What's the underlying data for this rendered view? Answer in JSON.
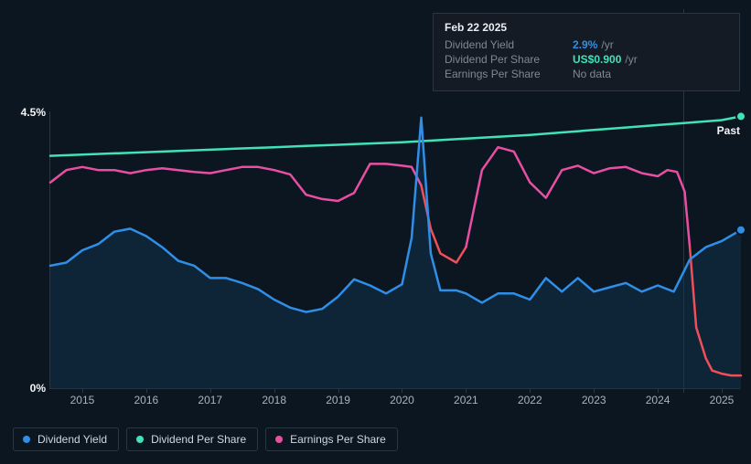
{
  "background_color": "#0b1620",
  "axis_color": "#2a3642",
  "text_muted": "#7d8996",
  "text_bright": "#e9eef3",
  "chart": {
    "type": "line",
    "x_years": [
      2015,
      2016,
      2017,
      2018,
      2019,
      2020,
      2021,
      2022,
      2023,
      2024,
      2025
    ],
    "x_start": 2014.5,
    "x_end": 2025.3,
    "ylim": [
      0,
      4.5
    ],
    "ytick_labels": [
      "0%",
      "4.5%"
    ],
    "past_label": "Past",
    "separator_x": 2024.42,
    "area_fill": "#12324a",
    "area_fill_opacity": 0.55,
    "series": {
      "dividend_yield": {
        "label": "Dividend Yield",
        "color": "#2f8fe8",
        "width": 2.5,
        "end_marker": true,
        "points": [
          [
            2014.5,
            2.0
          ],
          [
            2014.75,
            2.05
          ],
          [
            2015.0,
            2.25
          ],
          [
            2015.25,
            2.35
          ],
          [
            2015.5,
            2.55
          ],
          [
            2015.75,
            2.6
          ],
          [
            2016.0,
            2.48
          ],
          [
            2016.25,
            2.3
          ],
          [
            2016.5,
            2.08
          ],
          [
            2016.75,
            2.0
          ],
          [
            2017.0,
            1.8
          ],
          [
            2017.25,
            1.8
          ],
          [
            2017.5,
            1.72
          ],
          [
            2017.75,
            1.62
          ],
          [
            2018.0,
            1.45
          ],
          [
            2018.25,
            1.32
          ],
          [
            2018.5,
            1.25
          ],
          [
            2018.75,
            1.3
          ],
          [
            2019.0,
            1.5
          ],
          [
            2019.25,
            1.78
          ],
          [
            2019.5,
            1.68
          ],
          [
            2019.75,
            1.55
          ],
          [
            2020.0,
            1.7
          ],
          [
            2020.15,
            2.45
          ],
          [
            2020.3,
            4.4
          ],
          [
            2020.45,
            2.2
          ],
          [
            2020.6,
            1.6
          ],
          [
            2020.85,
            1.6
          ],
          [
            2021.0,
            1.55
          ],
          [
            2021.25,
            1.4
          ],
          [
            2021.5,
            1.55
          ],
          [
            2021.75,
            1.55
          ],
          [
            2022.0,
            1.45
          ],
          [
            2022.25,
            1.8
          ],
          [
            2022.5,
            1.58
          ],
          [
            2022.75,
            1.8
          ],
          [
            2023.0,
            1.58
          ],
          [
            2023.25,
            1.65
          ],
          [
            2023.5,
            1.72
          ],
          [
            2023.75,
            1.58
          ],
          [
            2024.0,
            1.68
          ],
          [
            2024.25,
            1.58
          ],
          [
            2024.5,
            2.1
          ],
          [
            2024.75,
            2.3
          ],
          [
            2025.0,
            2.4
          ],
          [
            2025.3,
            2.58
          ]
        ]
      },
      "dividend_per_share": {
        "label": "Dividend Per Share",
        "color": "#41e2ba",
        "width": 2.5,
        "end_marker": true,
        "points": [
          [
            2014.5,
            3.78
          ],
          [
            2015.0,
            3.8
          ],
          [
            2015.5,
            3.82
          ],
          [
            2016.0,
            3.84
          ],
          [
            2016.5,
            3.86
          ],
          [
            2017.0,
            3.88
          ],
          [
            2017.5,
            3.9
          ],
          [
            2018.0,
            3.92
          ],
          [
            2018.5,
            3.94
          ],
          [
            2019.0,
            3.96
          ],
          [
            2019.5,
            3.98
          ],
          [
            2020.0,
            4.0
          ],
          [
            2020.5,
            4.03
          ],
          [
            2021.0,
            4.06
          ],
          [
            2021.5,
            4.09
          ],
          [
            2022.0,
            4.12
          ],
          [
            2022.5,
            4.16
          ],
          [
            2023.0,
            4.2
          ],
          [
            2023.5,
            4.24
          ],
          [
            2024.0,
            4.28
          ],
          [
            2024.5,
            4.32
          ],
          [
            2025.0,
            4.36
          ],
          [
            2025.3,
            4.42
          ]
        ]
      },
      "earnings_per_share": {
        "label": "Earnings Per Share",
        "color_segments": [
          {
            "color": "#e84fa2",
            "from": 0,
            "to": 24
          },
          {
            "color": "#f04f5a",
            "from": 24,
            "to": 28
          },
          {
            "color": "#e84fa2",
            "from": 28,
            "to": 44
          },
          {
            "color": "#f04f5a",
            "from": 44,
            "to": 51
          }
        ],
        "width": 2.5,
        "points": [
          [
            2014.5,
            3.35
          ],
          [
            2014.75,
            3.55
          ],
          [
            2015.0,
            3.6
          ],
          [
            2015.25,
            3.55
          ],
          [
            2015.5,
            3.55
          ],
          [
            2015.75,
            3.5
          ],
          [
            2016.0,
            3.55
          ],
          [
            2016.25,
            3.58
          ],
          [
            2016.5,
            3.55
          ],
          [
            2016.75,
            3.52
          ],
          [
            2017.0,
            3.5
          ],
          [
            2017.25,
            3.55
          ],
          [
            2017.5,
            3.6
          ],
          [
            2017.75,
            3.6
          ],
          [
            2018.0,
            3.55
          ],
          [
            2018.25,
            3.48
          ],
          [
            2018.5,
            3.15
          ],
          [
            2018.75,
            3.08
          ],
          [
            2019.0,
            3.05
          ],
          [
            2019.25,
            3.18
          ],
          [
            2019.5,
            3.65
          ],
          [
            2019.75,
            3.65
          ],
          [
            2020.0,
            3.62
          ],
          [
            2020.15,
            3.6
          ],
          [
            2020.3,
            3.3
          ],
          [
            2020.45,
            2.6
          ],
          [
            2020.6,
            2.2
          ],
          [
            2020.85,
            2.05
          ],
          [
            2021.0,
            2.3
          ],
          [
            2021.25,
            3.55
          ],
          [
            2021.5,
            3.92
          ],
          [
            2021.75,
            3.85
          ],
          [
            2022.0,
            3.35
          ],
          [
            2022.25,
            3.1
          ],
          [
            2022.5,
            3.55
          ],
          [
            2022.75,
            3.62
          ],
          [
            2023.0,
            3.5
          ],
          [
            2023.25,
            3.58
          ],
          [
            2023.5,
            3.6
          ],
          [
            2023.75,
            3.5
          ],
          [
            2024.0,
            3.45
          ],
          [
            2024.15,
            3.55
          ],
          [
            2024.3,
            3.52
          ],
          [
            2024.42,
            3.2
          ],
          [
            2024.5,
            2.3
          ],
          [
            2024.6,
            1.0
          ],
          [
            2024.75,
            0.5
          ],
          [
            2024.85,
            0.3
          ],
          [
            2025.0,
            0.25
          ],
          [
            2025.15,
            0.22
          ],
          [
            2025.3,
            0.22
          ]
        ]
      }
    }
  },
  "tooltip": {
    "date": "Feb 22 2025",
    "rows": [
      {
        "k": "Dividend Yield",
        "v": "2.9%",
        "unit": "/yr",
        "vclass": "v1"
      },
      {
        "k": "Dividend Per Share",
        "v": "US$0.900",
        "unit": "/yr",
        "vclass": "v2"
      },
      {
        "k": "Earnings Per Share",
        "v": "No data",
        "unit": "",
        "vclass": "v3"
      }
    ]
  },
  "legend": [
    {
      "label": "Dividend Yield",
      "color": "#2f8fe8"
    },
    {
      "label": "Dividend Per Share",
      "color": "#41e2ba"
    },
    {
      "label": "Earnings Per Share",
      "color": "#e84fa2"
    }
  ]
}
